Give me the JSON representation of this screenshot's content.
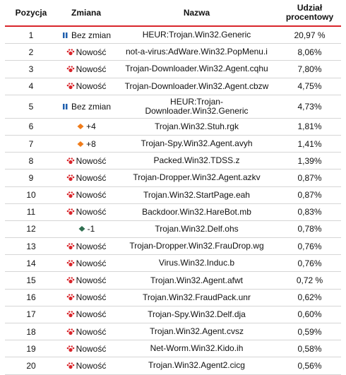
{
  "table": {
    "headers": {
      "position": "Pozycja",
      "change": "Zmiana",
      "name": "Nazwa",
      "share_line1": "Udział",
      "share_line2": "procentowy"
    },
    "rows": [
      {
        "pos": "1",
        "icon": "no-change-icon",
        "change": "Bez zmian",
        "name": "HEUR:Trojan.Win32.Generic",
        "share": "20,97 %"
      },
      {
        "pos": "2",
        "icon": "new-entry-icon",
        "change": "Nowość",
        "name": "not-a-virus:AdWare.Win32.PopMenu.i",
        "share": "8,06%"
      },
      {
        "pos": "3",
        "icon": "new-entry-icon",
        "change": "Nowość",
        "name": "Trojan-Downloader.Win32.Agent.cqhu",
        "share": "7,80%"
      },
      {
        "pos": "4",
        "icon": "new-entry-icon",
        "change": "Nowość",
        "name": "Trojan-Downloader.Win32.Agent.cbzw",
        "share": "4,75%"
      },
      {
        "pos": "5",
        "icon": "no-change-icon",
        "change": "Bez zmian",
        "name": "HEUR:Trojan-\nDownloader.Win32.Generic",
        "share": "4,73%"
      },
      {
        "pos": "6",
        "icon": "up-arrow-icon",
        "change": "+4",
        "name": "Trojan.Win32.Stuh.rgk",
        "share": "1,81%"
      },
      {
        "pos": "7",
        "icon": "up-arrow-icon",
        "change": "+8",
        "name": "Trojan-Spy.Win32.Agent.avyh",
        "share": "1,41%"
      },
      {
        "pos": "8",
        "icon": "new-entry-icon",
        "change": "Nowość",
        "name": "Packed.Win32.TDSS.z",
        "share": "1,39%"
      },
      {
        "pos": "9",
        "icon": "new-entry-icon",
        "change": "Nowość",
        "name": "Trojan-Dropper.Win32.Agent.azkv",
        "share": "0,87%"
      },
      {
        "pos": "10",
        "icon": "new-entry-icon",
        "change": "Nowość",
        "name": "Trojan.Win32.StartPage.eah",
        "share": "0,87%"
      },
      {
        "pos": "11",
        "icon": "new-entry-icon",
        "change": "Nowość",
        "name": "Backdoor.Win32.HareBot.mb",
        "share": "0,83%"
      },
      {
        "pos": "12",
        "icon": "down-arrow-icon",
        "change": "-1",
        "name": "Trojan.Win32.Delf.ohs",
        "share": "0,78%"
      },
      {
        "pos": "13",
        "icon": "new-entry-icon",
        "change": "Nowość",
        "name": "Trojan-Dropper.Win32.FrauDrop.wg",
        "share": "0,76%"
      },
      {
        "pos": "14",
        "icon": "new-entry-icon",
        "change": "Nowość",
        "name": "Virus.Win32.Induc.b",
        "share": "0,76%"
      },
      {
        "pos": "15",
        "icon": "new-entry-icon",
        "change": "Nowość",
        "name": "Trojan.Win32.Agent.afwt",
        "share": "0,72 %"
      },
      {
        "pos": "16",
        "icon": "new-entry-icon",
        "change": "Nowość",
        "name": "Trojan.Win32.FraudPack.unr",
        "share": "0,62%"
      },
      {
        "pos": "17",
        "icon": "new-entry-icon",
        "change": "Nowość",
        "name": "Trojan-Spy.Win32.Delf.dja",
        "share": "0,60%"
      },
      {
        "pos": "18",
        "icon": "new-entry-icon",
        "change": "Nowość",
        "name": "Trojan.Win32.Agent.cvsz",
        "share": "0,59%"
      },
      {
        "pos": "19",
        "icon": "new-entry-icon",
        "change": "Nowość",
        "name": "Net-Worm.Win32.Kido.ih",
        "share": "0,58%"
      },
      {
        "pos": "20",
        "icon": "new-entry-icon",
        "change": "Nowość",
        "name": "Trojan.Win32.Agent2.cicg",
        "share": "0,56%"
      }
    ]
  },
  "colors": {
    "header_rule": "#d9252b",
    "new_entry": "#d9252b",
    "no_change": "#1f5fae",
    "up": "#f07c1a",
    "down": "#2f6e4f"
  }
}
